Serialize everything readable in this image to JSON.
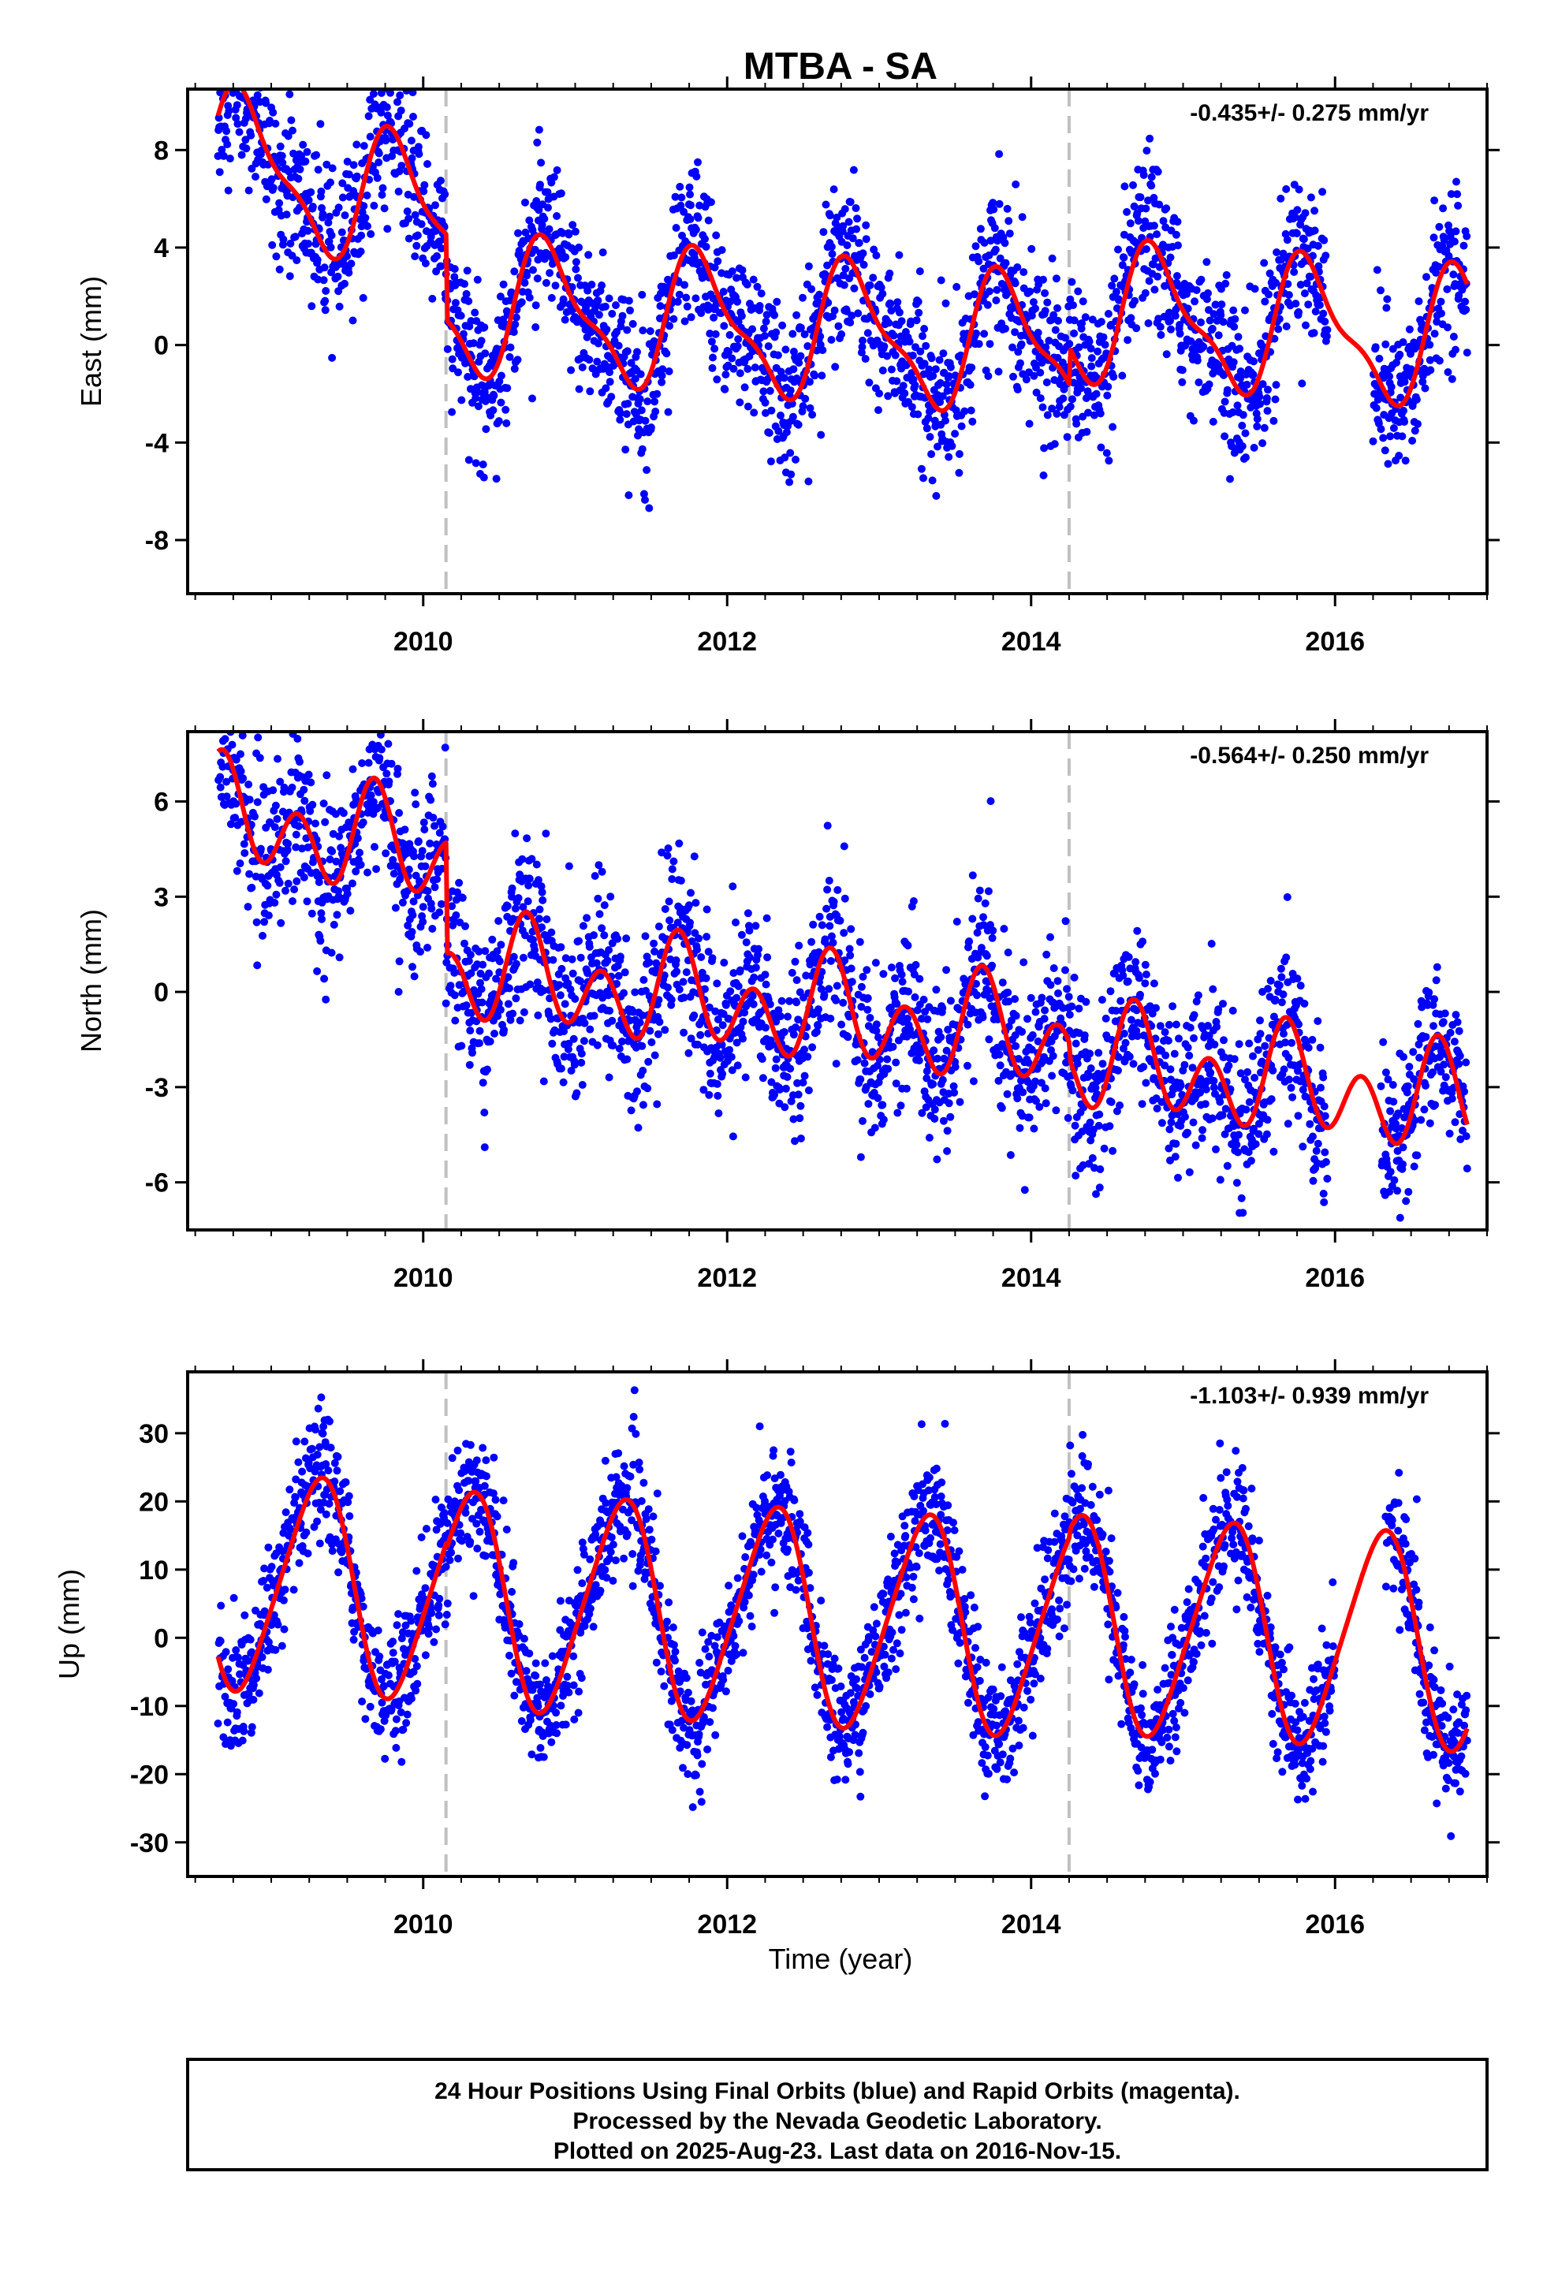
{
  "title": "MTBA - SA",
  "xlabel": "Time (year)",
  "footer": {
    "line1": "24 Hour Positions Using Final Orbits (blue) and Rapid Orbits (magenta).",
    "line2": "Processed by the Nevada Geodetic Laboratory.",
    "line3": "Plotted on 2025-Aug-23. Last data on 2016-Nov-15."
  },
  "colors": {
    "points": "#0000ff",
    "model": "#ff0000",
    "event_lines": "#c0c0c0"
  },
  "chart_data": [
    {
      "type": "scatter",
      "name": "east",
      "ylabel": "East (mm)",
      "rate_label": "-0.435+/- 0.275 mm/yr",
      "xlim": [
        2008.45,
        2017.0
      ],
      "ylim": [
        -10.2,
        10.5
      ],
      "xticks": [
        2010,
        2012,
        2014,
        2016
      ],
      "yticks": [
        -8,
        -4,
        0,
        4,
        8
      ],
      "event_lines": [
        2010.15,
        2014.25
      ],
      "data_start": 2008.65,
      "data_end": 2016.87,
      "gaps": [
        [
          2015.95,
          2016.25
        ]
      ],
      "model": {
        "offset": 1.6,
        "trend": -0.435,
        "annual_amp": 2.6,
        "annual_phase": 0.58,
        "semi_amp": 0.9,
        "semi_phase": 0.1,
        "scatter_sd": 1.6,
        "early_bumps": [
          {
            "t0": 2008.65,
            "t1": 2010.15,
            "add": [
              4.5,
              2.5
            ]
          }
        ],
        "steps": [
          {
            "t": 2010.15,
            "size": -1.0
          },
          {
            "t": 2014.25,
            "size": 1.5
          }
        ]
      }
    },
    {
      "type": "scatter",
      "name": "north",
      "ylabel": "North (mm)",
      "rate_label": "-0.564+/- 0.250 mm/yr",
      "xlim": [
        2008.45,
        2017.0
      ],
      "ylim": [
        -7.5,
        8.2
      ],
      "xticks": [
        2010,
        2012,
        2014,
        2016
      ],
      "yticks": [
        -6,
        -3,
        0,
        3,
        6
      ],
      "event_lines": [
        2010.15,
        2014.25
      ],
      "data_start": 2008.65,
      "data_end": 2016.87,
      "gaps": [
        [
          2015.95,
          2016.3
        ]
      ],
      "model": {
        "offset": 0.9,
        "trend": -0.564,
        "annual_amp": 0.8,
        "annual_phase": 0.45,
        "semi_amp": 1.3,
        "semi_phase": 0.05,
        "scatter_sd": 1.3,
        "early_bumps": [
          {
            "t0": 2008.65,
            "t1": 2010.15,
            "add": [
              2.5,
              2.0
            ]
          }
        ],
        "steps": [
          {
            "t": 2010.15,
            "size": -1.5
          },
          {
            "t": 2014.25,
            "size": -0.5
          }
        ]
      }
    },
    {
      "type": "scatter",
      "name": "up",
      "ylabel": "Up (mm)",
      "rate_label": "-1.103+/- 0.939 mm/yr",
      "xlim": [
        2008.45,
        2017.0
      ],
      "ylim": [
        -35,
        39
      ],
      "xticks": [
        2010,
        2012,
        2014,
        2016
      ],
      "yticks": [
        -30,
        -20,
        -10,
        0,
        10,
        20,
        30
      ],
      "event_lines": [
        2010.15,
        2014.25
      ],
      "data_start": 2008.65,
      "data_end": 2016.87,
      "gaps": [
        [
          2016.0,
          2016.33
        ]
      ],
      "model": {
        "offset": 4.0,
        "trend": -1.103,
        "annual_amp": 15.5,
        "annual_phase": 0.05,
        "semi_amp": 2.0,
        "semi_phase": 0.3,
        "scatter_sd": 4.5,
        "early_bumps": [],
        "steps": [
          {
            "t": 2010.15,
            "size": -1.0
          },
          {
            "t": 2014.25,
            "size": 1.0
          }
        ]
      }
    }
  ]
}
